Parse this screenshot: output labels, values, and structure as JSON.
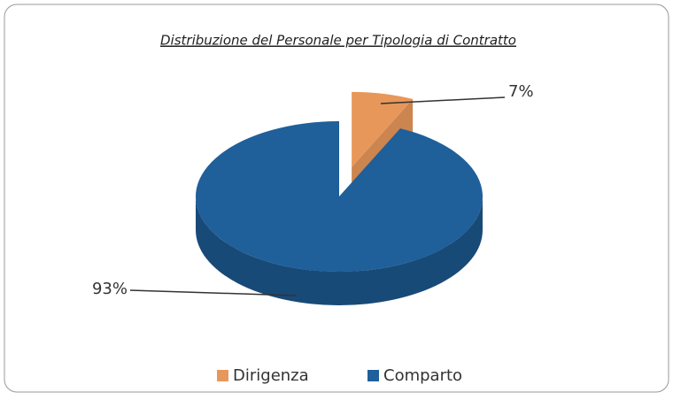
{
  "chart_data": {
    "type": "pie3d",
    "title": "Distribuzione del Personale per Tipologia di Contratto",
    "categories": [
      "Dirigenza",
      "Comparto"
    ],
    "values": [
      7,
      93
    ],
    "value_labels": [
      "7%",
      "93%"
    ],
    "colors": [
      "#e8975a",
      "#1f5f9a"
    ],
    "legend": "bottom"
  }
}
